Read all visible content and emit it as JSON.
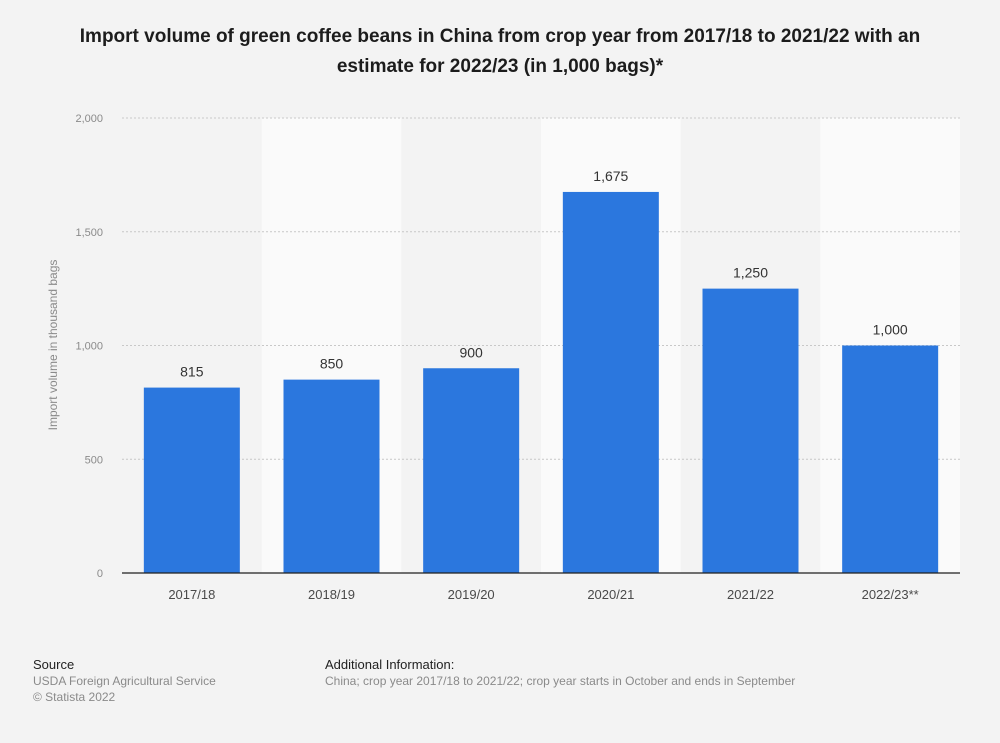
{
  "title": "Import volume of green coffee beans in China from crop year from 2017/18 to 2021/22 with an estimate for 2022/23 (in 1,000 bags)*",
  "colors": {
    "bar": "#2b77de",
    "band": "#fafafa",
    "grid": "#c8c8c8",
    "axis": "#1f1f1f",
    "tick_text": "#8a8a8a",
    "label_text": "#333333",
    "category_text": "#4a4a4a"
  },
  "chart_data": {
    "type": "bar",
    "categories": [
      "2017/18",
      "2018/19",
      "2019/20",
      "2020/21",
      "2021/22",
      "2022/23**"
    ],
    "values": [
      815,
      850,
      900,
      1675,
      1250,
      1000
    ],
    "data_labels": [
      "815",
      "850",
      "900",
      "1,675",
      "1,250",
      "1,000"
    ],
    "ylim": [
      0,
      2000
    ],
    "yticks": [
      0,
      500,
      1000,
      1500,
      2000
    ],
    "ytick_labels": [
      "0",
      "500",
      "1,000",
      "1,500",
      "2,000"
    ],
    "ylabel": "Import volume in thousand bags",
    "xlabel": "",
    "grid": true
  },
  "footer": {
    "source_heading": "Source",
    "source_lines": [
      "USDA Foreign Agricultural Service",
      "© Statista 2022"
    ],
    "info_heading": "Additional Information:",
    "info_text": "China; crop year 2017/18 to 2021/22; crop year starts in October and ends in September"
  }
}
